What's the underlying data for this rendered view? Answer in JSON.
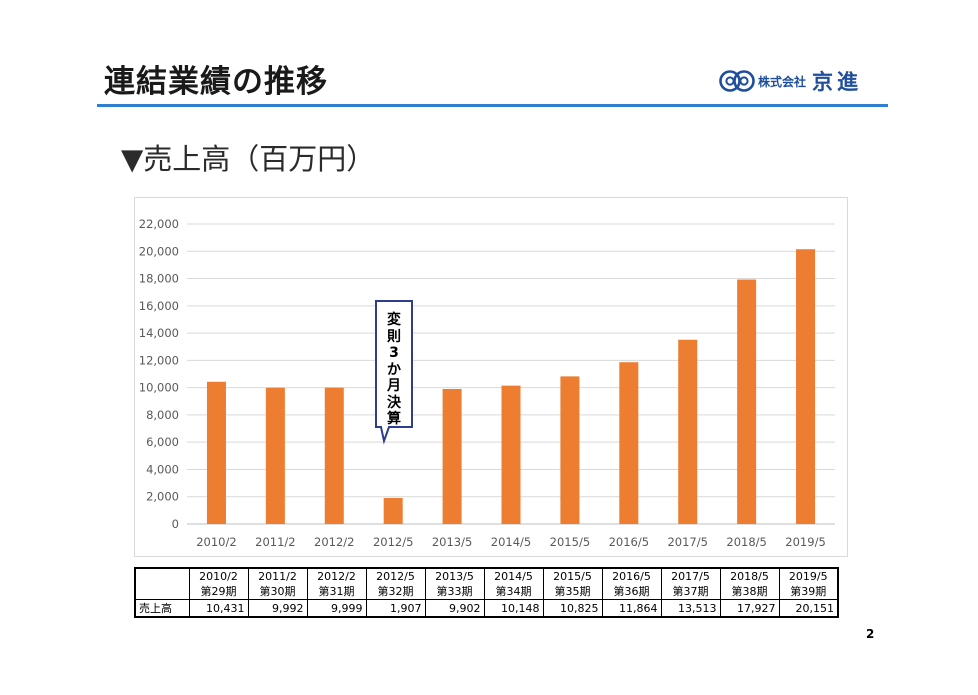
{
  "slide": {
    "title": "連結業績の推移",
    "subtitle": "▼売上高（百万円）",
    "page_number": "2",
    "logo": {
      "company_prefix": "株式会社",
      "company_name": "京進",
      "icon": "kyoshin-logo-icon"
    },
    "accent_color": "#2e7fd0",
    "bar_color": "#ed7d31"
  },
  "callout": {
    "text": "変則3か月決算",
    "chars": [
      "変",
      "則",
      "3",
      "か",
      "月",
      "決",
      "算"
    ]
  },
  "chart_data": {
    "type": "bar",
    "categories": [
      "2010/2",
      "2011/2",
      "2012/2",
      "2012/5",
      "2013/5",
      "2014/5",
      "2015/5",
      "2016/5",
      "2017/5",
      "2018/5",
      "2019/5"
    ],
    "values": [
      10431,
      9992,
      9999,
      1907,
      9902,
      10148,
      10825,
      11864,
      13513,
      17927,
      20151
    ],
    "yticks": [
      "0",
      "2,000",
      "4,000",
      "6,000",
      "8,000",
      "10,000",
      "12,000",
      "14,000",
      "16,000",
      "18,000",
      "20,000",
      "22,000"
    ],
    "ylim": [
      0,
      22000
    ],
    "grid": true,
    "title": "",
    "xlabel": "",
    "ylabel": ""
  },
  "table": {
    "row_label": "売上高",
    "periods": [
      "2010/2",
      "2011/2",
      "2012/2",
      "2012/5",
      "2013/5",
      "2014/5",
      "2015/5",
      "2016/5",
      "2017/5",
      "2018/5",
      "2019/5"
    ],
    "terms": [
      "第29期",
      "第30期",
      "第31期",
      "第32期",
      "第33期",
      "第34期",
      "第35期",
      "第36期",
      "第37期",
      "第38期",
      "第39期"
    ],
    "values": [
      "10,431",
      "9,992",
      "9,999",
      "1,907",
      "9,902",
      "10,148",
      "10,825",
      "11,864",
      "13,513",
      "17,927",
      "20,151"
    ]
  }
}
